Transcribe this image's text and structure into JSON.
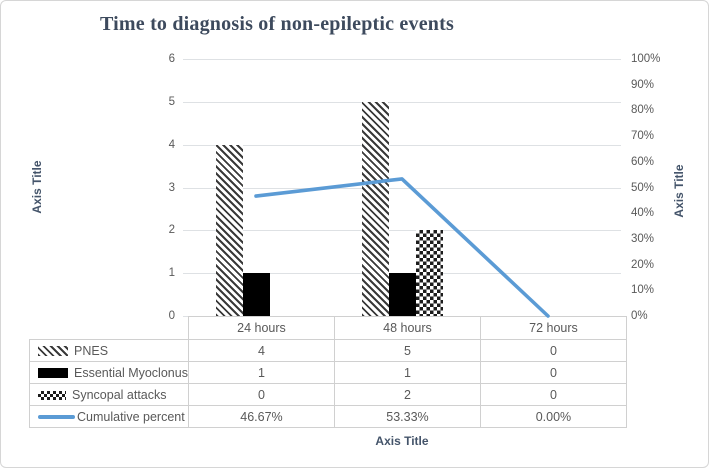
{
  "chart_data": {
    "type": "combo",
    "title": "Time to diagnosis of non-epileptic events",
    "categories": [
      "24 hours",
      "48 hours",
      "72 hours"
    ],
    "series": [
      {
        "name": "PNES",
        "chart_type": "bar",
        "pattern": "diagonal-hatch",
        "values": [
          4,
          5,
          0
        ],
        "table_values": [
          "4",
          "5",
          "0"
        ]
      },
      {
        "name": "Essential Myoclonus",
        "chart_type": "bar",
        "pattern": "solid-black",
        "values": [
          1,
          1,
          0
        ],
        "table_values": [
          "1",
          "1",
          "0"
        ]
      },
      {
        "name": "Syncopal attacks",
        "chart_type": "bar",
        "pattern": "checkerboard",
        "values": [
          0,
          2,
          0
        ],
        "table_values": [
          "0",
          "2",
          "0"
        ]
      },
      {
        "name": "Cumulative percent",
        "chart_type": "line",
        "pattern": "line",
        "axis": "secondary",
        "values": [
          46.67,
          53.33,
          0
        ],
        "table_values": [
          "46.67%",
          "53.33%",
          "0.00%"
        ]
      }
    ],
    "left_axis": {
      "title": "Axis Title",
      "min": 0,
      "max": 6,
      "ticks": [
        "0",
        "1",
        "2",
        "3",
        "4",
        "5",
        "6"
      ]
    },
    "right_axis": {
      "title": "Axis Title",
      "min": 0,
      "max": 100,
      "ticks": [
        "0%",
        "10%",
        "20%",
        "30%",
        "40%",
        "50%",
        "60%",
        "70%",
        "80%",
        "90%",
        "100%"
      ]
    },
    "x_axis": {
      "title": "Axis Title"
    },
    "grid": true,
    "legend_position": "table-left",
    "colors": {
      "line": "#5B9BD5",
      "title_text": "#3d4a5d",
      "axis_title_text": "#44546a",
      "tick_text": "#595959",
      "gridline": "#dee1e4",
      "table_border": "#d0d0d0",
      "bar_solid": "#000000",
      "hatch_stripe": "#3a3a3a"
    }
  }
}
